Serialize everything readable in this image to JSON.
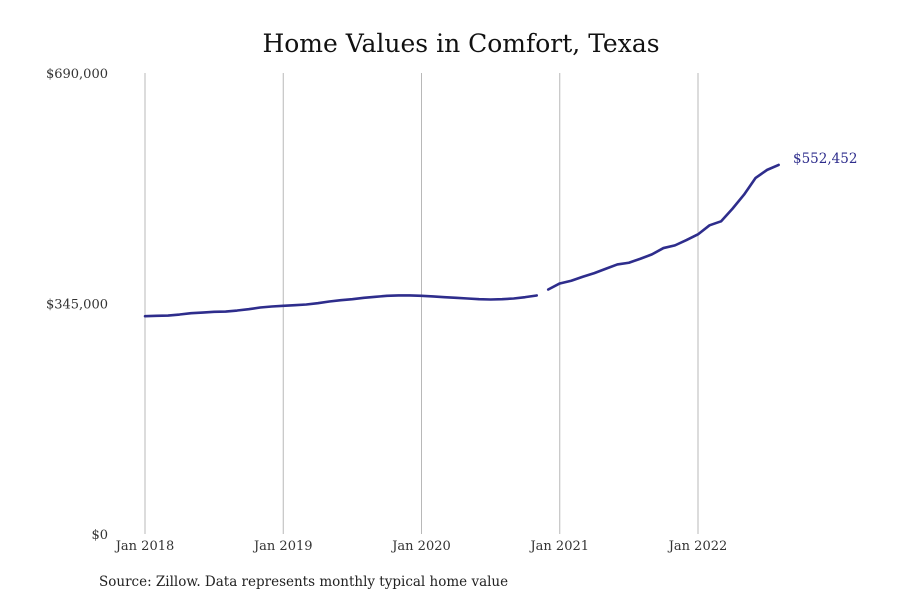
{
  "chart_data": {
    "type": "line",
    "title": "Home Values in Comfort, Texas",
    "xlabel": "",
    "ylabel": "",
    "x_ticks": [
      "Jan 2018",
      "Jan 2019",
      "Jan 2020",
      "Jan 2021",
      "Jan 2022"
    ],
    "y_ticks": [
      "$0",
      "$345,000",
      "$690,000"
    ],
    "ylim": [
      0,
      690000
    ],
    "grid": "vertical",
    "legend": "none",
    "end_label": "$552,452",
    "series": [
      {
        "color": "#2e2d8c",
        "segments": [
          [
            {
              "x": "2018-01",
              "y": 326000
            },
            {
              "x": "2018-02",
              "y": 326500
            },
            {
              "x": "2018-03",
              "y": 327000
            },
            {
              "x": "2018-04",
              "y": 328500
            },
            {
              "x": "2018-05",
              "y": 330500
            },
            {
              "x": "2018-06",
              "y": 331500
            },
            {
              "x": "2018-07",
              "y": 332500
            },
            {
              "x": "2018-08",
              "y": 333000
            },
            {
              "x": "2018-09",
              "y": 334500
            },
            {
              "x": "2018-10",
              "y": 336500
            },
            {
              "x": "2018-11",
              "y": 339000
            },
            {
              "x": "2018-12",
              "y": 340500
            },
            {
              "x": "2019-01",
              "y": 341500
            },
            {
              "x": "2019-02",
              "y": 342500
            },
            {
              "x": "2019-03",
              "y": 343500
            },
            {
              "x": "2019-04",
              "y": 345500
            },
            {
              "x": "2019-05",
              "y": 348000
            },
            {
              "x": "2019-06",
              "y": 350000
            },
            {
              "x": "2019-07",
              "y": 351500
            },
            {
              "x": "2019-08",
              "y": 353500
            },
            {
              "x": "2019-09",
              "y": 355000
            },
            {
              "x": "2019-10",
              "y": 356500
            },
            {
              "x": "2019-11",
              "y": 357000
            },
            {
              "x": "2019-12",
              "y": 357000
            },
            {
              "x": "2020-01",
              "y": 356500
            },
            {
              "x": "2020-02",
              "y": 355500
            },
            {
              "x": "2020-03",
              "y": 354500
            },
            {
              "x": "2020-04",
              "y": 353500
            },
            {
              "x": "2020-05",
              "y": 352500
            },
            {
              "x": "2020-06",
              "y": 351500
            },
            {
              "x": "2020-07",
              "y": 351000
            },
            {
              "x": "2020-08",
              "y": 351500
            },
            {
              "x": "2020-09",
              "y": 352500
            },
            {
              "x": "2020-10",
              "y": 354500
            },
            {
              "x": "2020-11",
              "y": 357000
            }
          ],
          [
            {
              "x": "2020-12",
              "y": 366000
            },
            {
              "x": "2021-01",
              "y": 375000
            },
            {
              "x": "2021-02",
              "y": 379000
            },
            {
              "x": "2021-03",
              "y": 385000
            },
            {
              "x": "2021-04",
              "y": 390500
            },
            {
              "x": "2021-05",
              "y": 397000
            },
            {
              "x": "2021-06",
              "y": 403500
            },
            {
              "x": "2021-07",
              "y": 406000
            },
            {
              "x": "2021-08",
              "y": 412000
            },
            {
              "x": "2021-09",
              "y": 418500
            },
            {
              "x": "2021-10",
              "y": 428000
            },
            {
              "x": "2021-11",
              "y": 432000
            },
            {
              "x": "2021-12",
              "y": 440000
            },
            {
              "x": "2022-01",
              "y": 448500
            },
            {
              "x": "2022-02",
              "y": 462000
            },
            {
              "x": "2022-03",
              "y": 468000
            },
            {
              "x": "2022-04",
              "y": 487000
            },
            {
              "x": "2022-05",
              "y": 508000
            },
            {
              "x": "2022-06",
              "y": 533000
            },
            {
              "x": "2022-07",
              "y": 545000
            },
            {
              "x": "2022-08",
              "y": 552452
            }
          ]
        ]
      }
    ]
  },
  "footer": {
    "source": "Source: Zillow. Data represents monthly typical home value"
  }
}
